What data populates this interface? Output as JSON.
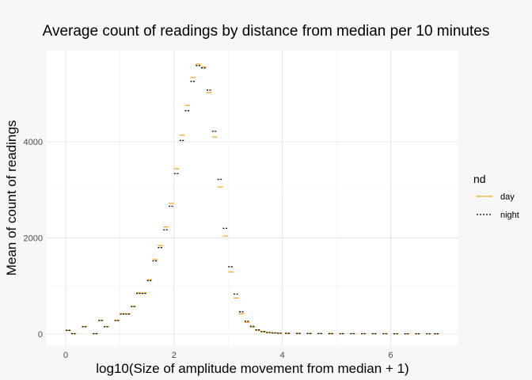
{
  "chart_data": {
    "type": "step",
    "title": "Average count of readings by distance from median per 10 minutes",
    "xlabel": "log10(Size of amplitude movement from median + 1)",
    "ylabel": "Mean of count of readings",
    "xlim": [
      -0.35,
      7.25
    ],
    "ylim": [
      -250,
      5900
    ],
    "x_ticks": [
      0,
      2,
      4,
      6
    ],
    "x_tick_labels": [
      "0",
      "2",
      "4",
      "6"
    ],
    "y_ticks": [
      0,
      2000,
      4000
    ],
    "y_tick_labels": [
      "0",
      "2000",
      "4000"
    ],
    "grid": true,
    "legend": {
      "title": "nd",
      "position": "right",
      "entries": [
        {
          "label": "day",
          "color": "#f5a623",
          "linestyle": "solid"
        },
        {
          "label": "night",
          "color": "#000000",
          "linestyle": "dashed"
        }
      ]
    },
    "x": [
      0.05,
      0.15,
      0.35,
      0.55,
      0.65,
      0.75,
      0.95,
      1.05,
      1.15,
      1.25,
      1.35,
      1.45,
      1.55,
      1.65,
      1.75,
      1.85,
      1.95,
      2.05,
      2.15,
      2.25,
      2.35,
      2.45,
      2.55,
      2.65,
      2.75,
      2.85,
      2.95,
      3.05,
      3.15,
      3.25,
      3.35,
      3.45,
      3.55,
      3.65,
      3.75,
      3.85,
      3.95,
      4.1,
      4.3,
      4.5,
      4.7,
      4.9,
      5.1,
      5.3,
      5.5,
      5.7,
      5.9,
      6.1,
      6.3,
      6.5,
      6.7,
      6.85
    ],
    "series": [
      {
        "name": "day",
        "color": "#f5a623",
        "values": [
          75,
          5,
          155,
          5,
          285,
          155,
          285,
          420,
          420,
          575,
          855,
          855,
          1130,
          1550,
          1840,
          2230,
          2720,
          3440,
          4140,
          4760,
          5340,
          5620,
          5560,
          5030,
          4100,
          3060,
          2040,
          1290,
          750,
          420,
          240,
          145,
          75,
          45,
          28,
          20,
          15,
          12,
          10,
          9,
          8,
          7,
          6,
          6,
          5,
          5,
          5,
          4,
          4,
          4,
          4,
          4
        ]
      },
      {
        "name": "night",
        "color": "#000000",
        "values": [
          75,
          5,
          150,
          5,
          280,
          150,
          280,
          415,
          415,
          570,
          845,
          845,
          1110,
          1520,
          1800,
          2170,
          2660,
          3340,
          4030,
          4650,
          5260,
          5590,
          5540,
          5080,
          4220,
          3220,
          2200,
          1400,
          830,
          460,
          265,
          160,
          85,
          50,
          30,
          22,
          16,
          13,
          11,
          9,
          8,
          7,
          6,
          6,
          5,
          5,
          5,
          4,
          4,
          4,
          4,
          4
        ]
      }
    ]
  }
}
